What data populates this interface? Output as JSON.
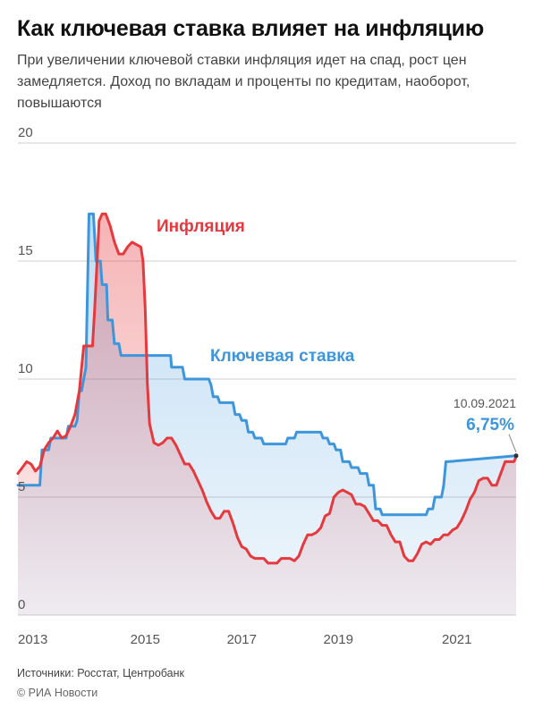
{
  "title": "Как ключевая ставка влияет на инфляцию",
  "subtitle": "При увеличении ключевой ставки инфляция идет на спад, рост цен замедляется. Доход по вкладам и проценты по кредитам, наоборот, повышаются",
  "footer": {
    "sources": "Источники: Росстат, Центробанк",
    "copyright": "© РИА Новости"
  },
  "colors": {
    "inflation": "#e5393e",
    "key_rate": "#3d96dc",
    "inflation_fill": "#f2b7b9",
    "key_rate_fill": "#c9dff0",
    "grid": "#cfcfcf",
    "tick_text": "#555555"
  },
  "chart_data": {
    "type": "line",
    "y_ticks": [
      "0",
      "5",
      "10",
      "15",
      "20"
    ],
    "x_ticks": [
      "2013",
      "2015",
      "2017",
      "2019",
      "2021"
    ],
    "ylim": [
      0,
      20
    ],
    "grid": true,
    "annotation": {
      "date": "10.09.2021",
      "value": "6,75%"
    },
    "series": [
      {
        "name": "Инфляция",
        "key": "inflation",
        "points": [
          [
            2013.0,
            6.0
          ],
          [
            2013.2,
            6.5
          ],
          [
            2013.3,
            6.4
          ],
          [
            2013.4,
            6.1
          ],
          [
            2013.5,
            6.3
          ],
          [
            2013.6,
            7.0
          ],
          [
            2013.7,
            7.3
          ],
          [
            2013.8,
            7.5
          ],
          [
            2013.9,
            7.8
          ],
          [
            2014.0,
            7.5
          ],
          [
            2014.1,
            7.6
          ],
          [
            2014.2,
            8.0
          ],
          [
            2014.3,
            8.5
          ],
          [
            2014.4,
            9.5
          ],
          [
            2014.5,
            11.4
          ],
          [
            2014.6,
            11.4
          ],
          [
            2014.7,
            11.4
          ],
          [
            2014.75,
            13.0
          ],
          [
            2014.85,
            16.7
          ],
          [
            2014.92,
            17.0
          ],
          [
            2015.0,
            17.0
          ],
          [
            2015.1,
            16.5
          ],
          [
            2015.2,
            15.8
          ],
          [
            2015.3,
            15.3
          ],
          [
            2015.4,
            15.3
          ],
          [
            2015.5,
            15.6
          ],
          [
            2015.6,
            15.8
          ],
          [
            2015.7,
            15.7
          ],
          [
            2015.8,
            15.6
          ],
          [
            2015.85,
            15.0
          ],
          [
            2015.9,
            13.0
          ],
          [
            2015.95,
            9.8
          ],
          [
            2016.0,
            8.1
          ],
          [
            2016.1,
            7.3
          ],
          [
            2016.2,
            7.2
          ],
          [
            2016.3,
            7.3
          ],
          [
            2016.4,
            7.5
          ],
          [
            2016.5,
            7.5
          ],
          [
            2016.6,
            7.2
          ],
          [
            2016.7,
            6.8
          ],
          [
            2016.8,
            6.4
          ],
          [
            2016.9,
            6.4
          ],
          [
            2017.0,
            6.1
          ],
          [
            2017.1,
            5.7
          ],
          [
            2017.2,
            5.3
          ],
          [
            2017.3,
            4.8
          ],
          [
            2017.4,
            4.4
          ],
          [
            2017.5,
            4.1
          ],
          [
            2017.6,
            4.1
          ],
          [
            2017.7,
            4.4
          ],
          [
            2017.8,
            4.4
          ],
          [
            2017.9,
            3.9
          ],
          [
            2018.0,
            3.3
          ],
          [
            2018.1,
            2.9
          ],
          [
            2018.2,
            2.8
          ],
          [
            2018.3,
            2.5
          ],
          [
            2018.4,
            2.4
          ],
          [
            2018.5,
            2.4
          ],
          [
            2018.6,
            2.4
          ],
          [
            2018.7,
            2.2
          ],
          [
            2018.8,
            2.2
          ],
          [
            2018.9,
            2.2
          ],
          [
            2019.0,
            2.4
          ],
          [
            2019.1,
            2.4
          ],
          [
            2019.2,
            2.4
          ],
          [
            2019.3,
            2.3
          ],
          [
            2019.4,
            2.5
          ],
          [
            2019.5,
            3.0
          ],
          [
            2019.6,
            3.4
          ],
          [
            2019.7,
            3.4
          ],
          [
            2019.8,
            3.5
          ],
          [
            2019.9,
            3.7
          ],
          [
            2020.0,
            4.2
          ],
          [
            2020.1,
            4.3
          ],
          [
            2020.2,
            5.0
          ],
          [
            2020.3,
            5.2
          ],
          [
            2020.4,
            5.3
          ],
          [
            2020.5,
            5.2
          ],
          [
            2020.6,
            5.1
          ],
          [
            2020.7,
            4.7
          ],
          [
            2020.8,
            4.7
          ],
          [
            2020.9,
            4.6
          ],
          [
            2021.0,
            4.3
          ],
          [
            2021.1,
            4.0
          ],
          [
            2021.2,
            4.0
          ],
          [
            2021.3,
            3.8
          ],
          [
            2021.4,
            3.8
          ],
          [
            2021.5,
            3.4
          ],
          [
            2021.6,
            3.1
          ],
          [
            2021.7,
            3.1
          ],
          [
            2021.8,
            2.5
          ],
          [
            2021.9,
            2.3
          ],
          [
            2022.0,
            2.3
          ],
          [
            2022.1,
            2.6
          ],
          [
            2022.2,
            3.0
          ],
          [
            2022.3,
            3.1
          ],
          [
            2022.4,
            3.0
          ],
          [
            2022.5,
            3.2
          ],
          [
            2022.6,
            3.2
          ],
          [
            2022.7,
            3.4
          ],
          [
            2022.8,
            3.4
          ],
          [
            2022.9,
            3.6
          ],
          [
            2023.0,
            3.7
          ],
          [
            2023.1,
            4.0
          ],
          [
            2023.2,
            4.4
          ],
          [
            2023.3,
            4.9
          ],
          [
            2023.4,
            5.2
          ],
          [
            2023.5,
            5.7
          ],
          [
            2023.6,
            5.8
          ],
          [
            2023.7,
            5.8
          ],
          [
            2023.8,
            5.5
          ],
          [
            2023.9,
            5.5
          ],
          [
            2024.0,
            6.0
          ],
          [
            2024.1,
            6.5
          ],
          [
            2024.2,
            6.5
          ],
          [
            2024.3,
            6.5
          ],
          [
            2024.35,
            6.7
          ]
        ]
      },
      {
        "name": "Ключевая ставка",
        "key": "key_rate",
        "points": [
          [
            2013.0,
            5.5
          ],
          [
            2013.2,
            5.5
          ],
          [
            2013.3,
            5.5
          ],
          [
            2013.4,
            5.5
          ],
          [
            2013.5,
            5.5
          ],
          [
            2013.55,
            7.0
          ],
          [
            2013.7,
            7.0
          ],
          [
            2013.75,
            7.5
          ],
          [
            2013.9,
            7.5
          ],
          [
            2014.0,
            7.5
          ],
          [
            2014.1,
            7.5
          ],
          [
            2014.15,
            8.0
          ],
          [
            2014.3,
            8.0
          ],
          [
            2014.35,
            8.25
          ],
          [
            2014.4,
            9.5
          ],
          [
            2014.45,
            9.5
          ],
          [
            2014.55,
            10.5
          ],
          [
            2014.62,
            17.0
          ],
          [
            2014.72,
            17.0
          ],
          [
            2014.78,
            15.0
          ],
          [
            2014.88,
            15.0
          ],
          [
            2014.92,
            14.0
          ],
          [
            2015.02,
            14.0
          ],
          [
            2015.05,
            12.5
          ],
          [
            2015.15,
            12.5
          ],
          [
            2015.2,
            11.5
          ],
          [
            2015.3,
            11.5
          ],
          [
            2015.35,
            11.0
          ],
          [
            2015.5,
            11.0
          ],
          [
            2015.6,
            11.0
          ],
          [
            2015.7,
            11.0
          ],
          [
            2016.0,
            11.0
          ],
          [
            2016.2,
            11.0
          ],
          [
            2016.4,
            11.0
          ],
          [
            2016.48,
            11.0
          ],
          [
            2016.5,
            10.5
          ],
          [
            2016.75,
            10.5
          ],
          [
            2016.8,
            10.0
          ],
          [
            2017.0,
            10.0
          ],
          [
            2017.2,
            10.0
          ],
          [
            2017.35,
            10.0
          ],
          [
            2017.4,
            9.75
          ],
          [
            2017.45,
            9.25
          ],
          [
            2017.55,
            9.25
          ],
          [
            2017.6,
            9.0
          ],
          [
            2017.8,
            9.0
          ],
          [
            2017.9,
            9.0
          ],
          [
            2017.95,
            8.5
          ],
          [
            2018.05,
            8.5
          ],
          [
            2018.1,
            8.25
          ],
          [
            2018.2,
            8.25
          ],
          [
            2018.25,
            7.75
          ],
          [
            2018.35,
            7.75
          ],
          [
            2018.4,
            7.5
          ],
          [
            2018.55,
            7.5
          ],
          [
            2018.6,
            7.25
          ],
          [
            2018.8,
            7.25
          ],
          [
            2019.0,
            7.25
          ],
          [
            2019.1,
            7.25
          ],
          [
            2019.15,
            7.5
          ],
          [
            2019.3,
            7.5
          ],
          [
            2019.35,
            7.75
          ],
          [
            2019.9,
            7.75
          ],
          [
            2019.95,
            7.5
          ],
          [
            2020.05,
            7.5
          ],
          [
            2020.1,
            7.25
          ],
          [
            2020.2,
            7.25
          ],
          [
            2020.25,
            7.0
          ],
          [
            2020.35,
            7.0
          ],
          [
            2020.4,
            6.5
          ],
          [
            2020.55,
            6.5
          ],
          [
            2020.6,
            6.25
          ],
          [
            2020.75,
            6.25
          ],
          [
            2020.8,
            6.0
          ],
          [
            2020.95,
            6.0
          ],
          [
            2021.0,
            5.5
          ],
          [
            2021.1,
            5.5
          ],
          [
            2021.15,
            4.5
          ],
          [
            2021.25,
            4.5
          ],
          [
            2021.3,
            4.25
          ],
          [
            2021.5,
            4.25
          ],
          [
            2021.6,
            4.25
          ],
          [
            2021.8,
            4.25
          ],
          [
            2022.0,
            4.25
          ],
          [
            2022.2,
            4.25
          ],
          [
            2022.3,
            4.25
          ],
          [
            2022.35,
            4.5
          ],
          [
            2022.45,
            4.5
          ],
          [
            2022.5,
            5.0
          ],
          [
            2022.65,
            5.0
          ],
          [
            2022.7,
            5.5
          ],
          [
            2022.75,
            6.5
          ],
          [
            2022.8,
            6.5
          ],
          [
            2024.35,
            6.75
          ]
        ]
      }
    ]
  }
}
